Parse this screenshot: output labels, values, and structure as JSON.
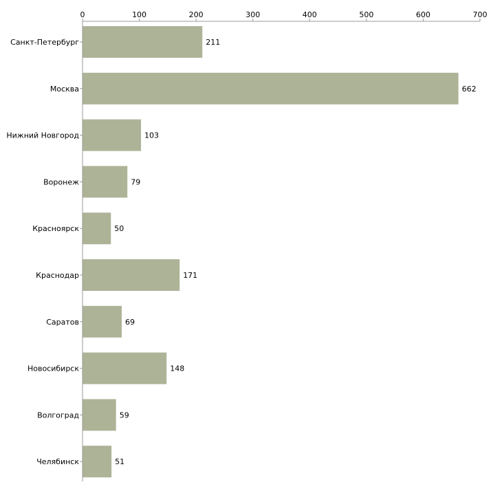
{
  "chart_data": {
    "type": "bar",
    "orientation": "horizontal",
    "categories": [
      "Санкт-Петербург",
      "Москва",
      "Нижний Новгород",
      "Воронеж",
      "Красноярск",
      "Краснодар",
      "Саратов",
      "Новосибирск",
      "Волгоград",
      "Челябинск"
    ],
    "values": [
      211,
      662,
      103,
      79,
      50,
      171,
      69,
      148,
      59,
      51
    ],
    "xlim": [
      0,
      700
    ],
    "xticks": [
      0,
      100,
      200,
      300,
      400,
      500,
      600,
      700
    ],
    "axis_position": "top",
    "grid": false,
    "bar_color": "#adb397",
    "title": "",
    "xlabel": "",
    "ylabel": ""
  }
}
